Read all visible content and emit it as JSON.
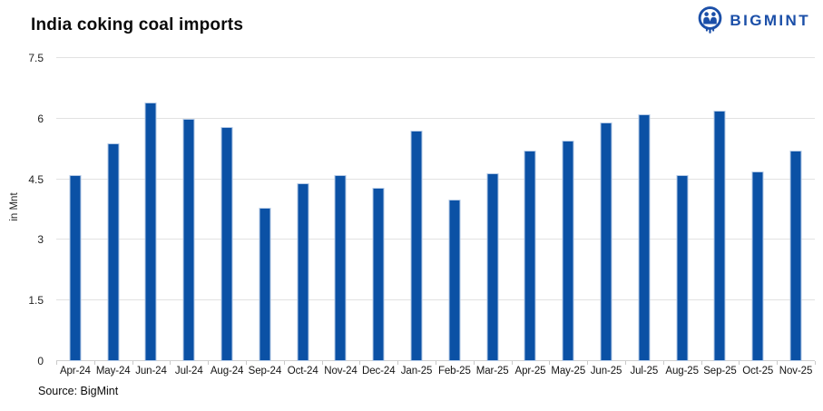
{
  "header": {
    "title": "India coking coal imports",
    "logo_text": "BIGMINT"
  },
  "chart_data": {
    "type": "bar",
    "title": "India coking coal imports",
    "xlabel": "",
    "ylabel": "in Mnt",
    "ylim": [
      0,
      7.5
    ],
    "ytick_values": [
      0,
      1.5,
      3,
      4.5,
      6,
      7.5
    ],
    "ytick_labels": [
      "0",
      "1.5",
      "3",
      "4.5",
      "6",
      "7.5"
    ],
    "grid": true,
    "legend_position": "none",
    "bar_color": "#0b51a5",
    "bar_border_color": "#b3c9e6",
    "gridline_color": "#e2e2e2",
    "logo_color": "#1b4fa8",
    "categories": [
      "Apr-24",
      "May-24",
      "Jun-24",
      "Jul-24",
      "Aug-24",
      "Sep-24",
      "Oct-24",
      "Nov-24",
      "Dec-24",
      "Jan-25",
      "Feb-25",
      "Mar-25",
      "Apr-25",
      "May-25",
      "Jun-25",
      "Jul-25",
      "Aug-25",
      "Sep-25",
      "Oct-25",
      "Nov-25"
    ],
    "values": [
      4.6,
      5.4,
      6.4,
      6.0,
      5.8,
      3.8,
      4.4,
      4.6,
      4.3,
      5.7,
      4.0,
      4.65,
      5.2,
      5.45,
      5.9,
      6.1,
      4.6,
      6.2,
      4.7,
      5.2
    ]
  },
  "footer": {
    "source": "Source: BigMint"
  }
}
